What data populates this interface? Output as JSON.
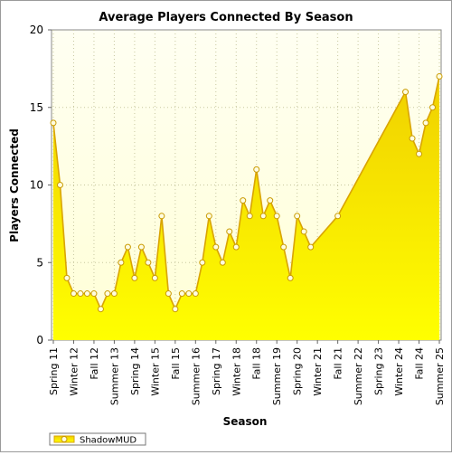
{
  "chart_data": {
    "type": "area",
    "title": "Average Players Connected By Season",
    "xlabel": "Season",
    "ylabel": "Players Connected",
    "ylim": [
      0,
      20
    ],
    "yticks": [
      0,
      5,
      10,
      15,
      20
    ],
    "grid": true,
    "legend_position": "bottom-left",
    "colors": {
      "line": "#d9a400",
      "fill_top": "#f0d000",
      "fill_bottom": "#ffff00",
      "marker_fill": "#fffde0",
      "plot_bg_top": "#fffff2",
      "plot_bg_bottom": "#ffffd6"
    },
    "x_tick_labels": [
      {
        "x": 1,
        "label": "Spring 11"
      },
      {
        "x": 4,
        "label": "Winter 12"
      },
      {
        "x": 7,
        "label": "Fall 12"
      },
      {
        "x": 10,
        "label": "Summer 13"
      },
      {
        "x": 13,
        "label": "Spring 14"
      },
      {
        "x": 16,
        "label": "Winter 15"
      },
      {
        "x": 19,
        "label": "Fall 15"
      },
      {
        "x": 22,
        "label": "Summer 16"
      },
      {
        "x": 25,
        "label": "Spring 17"
      },
      {
        "x": 28,
        "label": "Winter 18"
      },
      {
        "x": 31,
        "label": "Fall 18"
      },
      {
        "x": 34,
        "label": "Summer 19"
      },
      {
        "x": 37,
        "label": "Spring 20"
      },
      {
        "x": 40,
        "label": "Winter 21"
      },
      {
        "x": 43,
        "label": "Fall 21"
      },
      {
        "x": 46,
        "label": "Summer 22"
      },
      {
        "x": 49,
        "label": "Spring 23"
      },
      {
        "x": 52,
        "label": "Winter 24"
      },
      {
        "x": 55,
        "label": "Fall 24"
      },
      {
        "x": 58,
        "label": "Summer 25"
      }
    ],
    "series": [
      {
        "name": "ShadowMUD",
        "points": [
          {
            "x": 1,
            "y": 14
          },
          {
            "x": 2,
            "y": 10
          },
          {
            "x": 3,
            "y": 4
          },
          {
            "x": 4,
            "y": 3
          },
          {
            "x": 5,
            "y": 3
          },
          {
            "x": 6,
            "y": 3
          },
          {
            "x": 7,
            "y": 3
          },
          {
            "x": 8,
            "y": 2
          },
          {
            "x": 9,
            "y": 3
          },
          {
            "x": 10,
            "y": 3
          },
          {
            "x": 11,
            "y": 5
          },
          {
            "x": 12,
            "y": 6
          },
          {
            "x": 13,
            "y": 4
          },
          {
            "x": 14,
            "y": 6
          },
          {
            "x": 15,
            "y": 5
          },
          {
            "x": 16,
            "y": 4
          },
          {
            "x": 17,
            "y": 8
          },
          {
            "x": 18,
            "y": 3
          },
          {
            "x": 19,
            "y": 2
          },
          {
            "x": 20,
            "y": 3
          },
          {
            "x": 21,
            "y": 3
          },
          {
            "x": 22,
            "y": 3
          },
          {
            "x": 23,
            "y": 5
          },
          {
            "x": 24,
            "y": 8
          },
          {
            "x": 25,
            "y": 6
          },
          {
            "x": 26,
            "y": 5
          },
          {
            "x": 27,
            "y": 7
          },
          {
            "x": 28,
            "y": 6
          },
          {
            "x": 29,
            "y": 9
          },
          {
            "x": 30,
            "y": 8
          },
          {
            "x": 31,
            "y": 11
          },
          {
            "x": 32,
            "y": 8
          },
          {
            "x": 33,
            "y": 9
          },
          {
            "x": 34,
            "y": 8
          },
          {
            "x": 35,
            "y": 6
          },
          {
            "x": 36,
            "y": 4
          },
          {
            "x": 37,
            "y": 8
          },
          {
            "x": 38,
            "y": 7
          },
          {
            "x": 39,
            "y": 6
          },
          {
            "x": 43,
            "y": 8
          },
          {
            "x": 53,
            "y": 16
          },
          {
            "x": 54,
            "y": 13
          },
          {
            "x": 55,
            "y": 12
          },
          {
            "x": 56,
            "y": 14
          },
          {
            "x": 57,
            "y": 15
          },
          {
            "x": 58,
            "y": 17
          }
        ]
      }
    ]
  }
}
